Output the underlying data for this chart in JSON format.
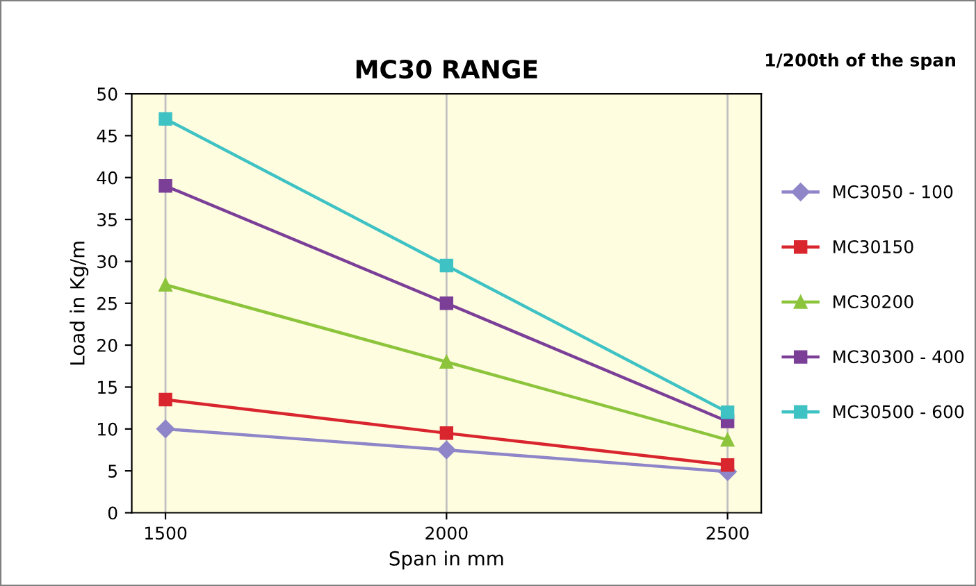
{
  "chart_data": {
    "type": "line",
    "title": "MC30 RANGE",
    "xlabel": "Span in mm",
    "ylabel": "Load in Kg/m",
    "annotations": [
      "1/200th of the span"
    ],
    "categories": [
      "1500",
      "2000",
      "2500"
    ],
    "series": [
      {
        "name": "MC3050 - 100",
        "color": "#8e86c8",
        "marker": "diamond",
        "values": [
          10,
          7.5,
          4.9
        ]
      },
      {
        "name": "MC30150",
        "color": "#d9262e",
        "marker": "square",
        "values": [
          13.5,
          9.5,
          5.7
        ]
      },
      {
        "name": "MC30200",
        "color": "#8cc43c",
        "marker": "triangle",
        "values": [
          27.2,
          18,
          8.7
        ]
      },
      {
        "name": "MC30300 - 400",
        "color": "#7b3f98",
        "marker": "square",
        "values": [
          39,
          25,
          10.9
        ]
      },
      {
        "name": "MC30500 - 600",
        "color": "#3fc2c4",
        "marker": "square",
        "values": [
          47,
          29.5,
          12
        ]
      }
    ],
    "ylim": [
      0,
      50
    ],
    "yticks": [
      0,
      5,
      10,
      15,
      20,
      25,
      30,
      35,
      40,
      45,
      50
    ],
    "grid": "x",
    "legend": "right"
  }
}
